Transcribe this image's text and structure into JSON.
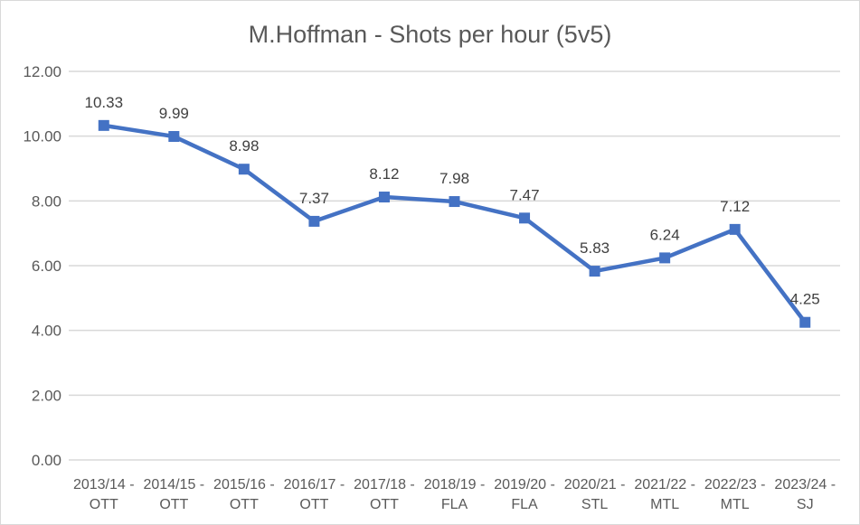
{
  "chart_data": {
    "type": "line",
    "title": "M.Hoffman - Shots per hour (5v5)",
    "categories": [
      "2013/14 - OTT",
      "2014/15 - OTT",
      "2015/16 - OTT",
      "2016/17 - OTT",
      "2017/18 - OTT",
      "2018/19 - FLA",
      "2019/20 - FLA",
      "2020/21 - STL",
      "2021/22 - MTL",
      "2022/23 - MTL",
      "2023/24 - SJ"
    ],
    "values": [
      10.33,
      9.99,
      8.98,
      7.37,
      8.12,
      7.98,
      7.47,
      5.83,
      6.24,
      7.12,
      4.25
    ],
    "data_labels": [
      "10.33",
      "9.99",
      "8.98",
      "7.37",
      "8.12",
      "7.98",
      "7.47",
      "5.83",
      "6.24",
      "7.12",
      "4.25"
    ],
    "y_ticks": [
      "0.00",
      "2.00",
      "4.00",
      "6.00",
      "8.00",
      "10.00",
      "12.00"
    ],
    "ylim": [
      0,
      12
    ],
    "xlabel": "",
    "ylabel": "",
    "grid": "horizontal",
    "legend": "none",
    "marker_shape": "square",
    "colors": {
      "line": "#4472C4",
      "marker": "#4472C4",
      "gridline": "#D9D9D9",
      "axis_text": "#595959",
      "title_text": "#595959",
      "data_label_text": "#404040",
      "background": "#FFFFFF",
      "border": "#D9D9D9"
    }
  }
}
